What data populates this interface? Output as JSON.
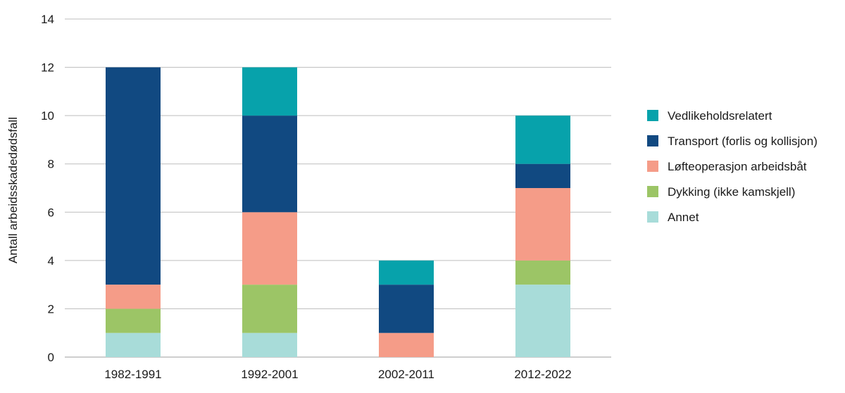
{
  "chart_data": {
    "type": "bar",
    "stacked": true,
    "title": "",
    "xlabel": "",
    "ylabel": "Antall arbeidsskadedødsfall",
    "ylim": [
      0,
      14
    ],
    "yticks": [
      0,
      2,
      4,
      6,
      8,
      10,
      12,
      14
    ],
    "grid": true,
    "legend_position": "right",
    "categories": [
      "1982-1991",
      "1992-2001",
      "2002-2011",
      "2012-2022"
    ],
    "series": [
      {
        "name": "Annet",
        "color": "#a8dcd9",
        "values": [
          1,
          1,
          0,
          3
        ]
      },
      {
        "name": "Dykking (ikke kamskjell)",
        "color": "#9cc566",
        "values": [
          1,
          2,
          0,
          1
        ]
      },
      {
        "name": "Løfteoperasjon arbeidsbåt",
        "color": "#f59c88",
        "values": [
          1,
          3,
          1,
          3
        ]
      },
      {
        "name": "Transport (forlis og kollisjon)",
        "color": "#114981",
        "values": [
          9,
          4,
          2,
          1
        ]
      },
      {
        "name": "Vedlikeholdsrelatert",
        "color": "#07a2ab",
        "values": [
          0,
          2,
          1,
          2
        ]
      }
    ],
    "legend_order": [
      "Vedlikeholdsrelatert",
      "Transport (forlis og kollisjon)",
      "Løfteoperasjon arbeidsbåt",
      "Dykking (ikke kamskjell)",
      "Annet"
    ]
  }
}
